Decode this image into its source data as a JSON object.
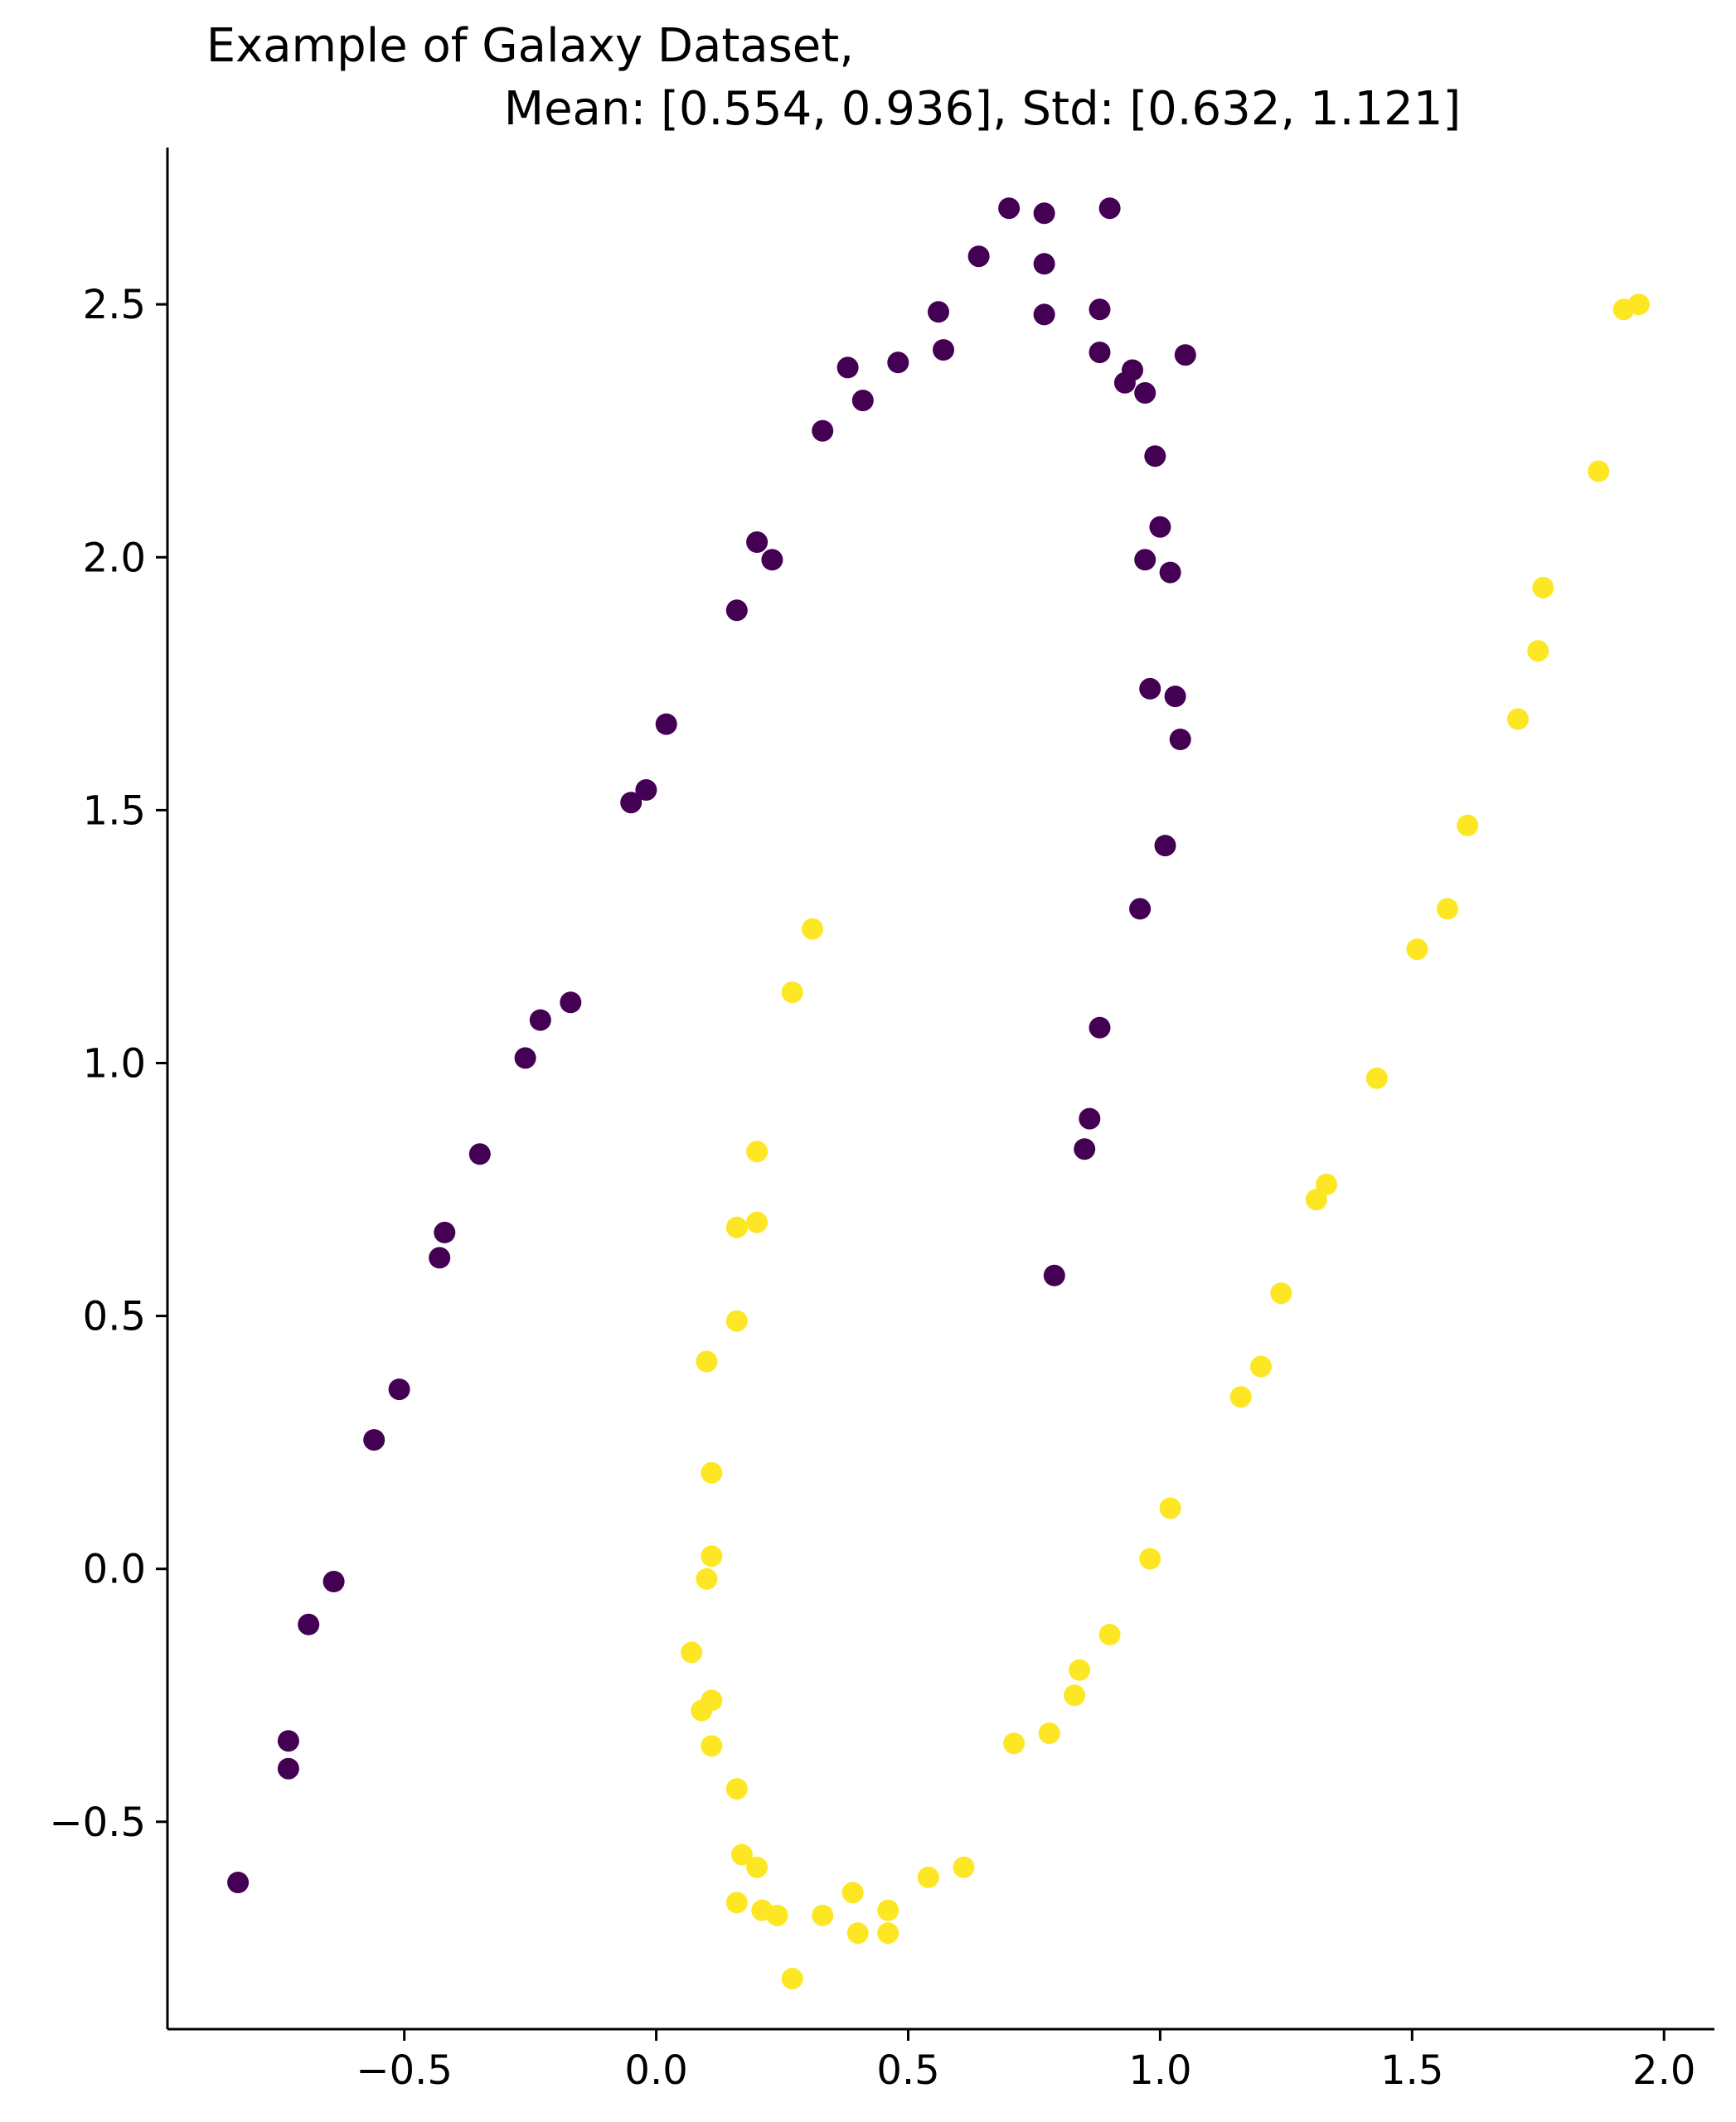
{
  "chart_data": {
    "type": "scatter",
    "title_line1": "Example of Galaxy Dataset,",
    "title_line2": "Mean: [0.554, 0.936], Std: [0.632, 1.121]",
    "xlabel": "",
    "ylabel": "",
    "xlim": [
      -0.97,
      2.1
    ],
    "ylim": [
      -0.91,
      2.81
    ],
    "xticks": [
      -0.5,
      0.0,
      0.5,
      1.0,
      1.5,
      2.0
    ],
    "xtick_labels": [
      "−0.5",
      "0.0",
      "0.5",
      "1.0",
      "1.5",
      "2.0"
    ],
    "yticks": [
      -0.5,
      0.0,
      0.5,
      1.0,
      1.5,
      2.0,
      2.5
    ],
    "ytick_labels": [
      "−0.5",
      "0.0",
      "0.5",
      "1.0",
      "1.5",
      "2.0",
      "2.5"
    ],
    "grid": false,
    "spines": [
      "left",
      "bottom"
    ],
    "series": [
      {
        "color": "#440154",
        "points": [
          [
            -0.83,
            -0.62
          ],
          [
            -0.73,
            -0.34
          ],
          [
            -0.73,
            -0.395
          ],
          [
            -0.69,
            -0.11
          ],
          [
            -0.64,
            -0.025
          ],
          [
            -0.56,
            0.255
          ],
          [
            -0.51,
            0.355
          ],
          [
            -0.43,
            0.615
          ],
          [
            -0.42,
            0.665
          ],
          [
            -0.35,
            0.82
          ],
          [
            -0.26,
            1.01
          ],
          [
            -0.23,
            1.085
          ],
          [
            -0.17,
            1.12
          ],
          [
            -0.05,
            1.515
          ],
          [
            -0.02,
            1.54
          ],
          [
            0.02,
            1.67
          ],
          [
            0.16,
            1.895
          ],
          [
            0.2,
            2.03
          ],
          [
            0.23,
            1.995
          ],
          [
            0.33,
            2.25
          ],
          [
            0.38,
            2.375
          ],
          [
            0.41,
            2.31
          ],
          [
            0.48,
            2.385
          ],
          [
            0.56,
            2.485
          ],
          [
            0.57,
            2.41
          ],
          [
            0.64,
            2.595
          ],
          [
            0.7,
            2.69
          ],
          [
            0.77,
            2.68
          ],
          [
            0.77,
            2.58
          ],
          [
            0.77,
            2.48
          ],
          [
            0.88,
            2.49
          ],
          [
            0.88,
            2.405
          ],
          [
            0.9,
            2.69
          ],
          [
            0.93,
            2.345
          ],
          [
            0.945,
            2.37
          ],
          [
            0.97,
            2.325
          ],
          [
            0.99,
            2.2
          ],
          [
            1.0,
            2.06
          ],
          [
            0.97,
            1.995
          ],
          [
            1.02,
            1.97
          ],
          [
            1.05,
            2.4
          ],
          [
            0.98,
            1.74
          ],
          [
            1.03,
            1.725
          ],
          [
            1.04,
            1.64
          ],
          [
            1.01,
            1.43
          ],
          [
            0.96,
            1.305
          ],
          [
            0.88,
            1.07
          ],
          [
            0.86,
            0.89
          ],
          [
            0.85,
            0.83
          ],
          [
            0.79,
            0.58
          ]
        ]
      },
      {
        "color": "#fde725",
        "points": [
          [
            0.31,
            1.265
          ],
          [
            0.27,
            1.14
          ],
          [
            0.2,
            0.825
          ],
          [
            0.2,
            0.685
          ],
          [
            0.16,
            0.675
          ],
          [
            0.16,
            0.49
          ],
          [
            0.1,
            0.41
          ],
          [
            0.11,
            0.19
          ],
          [
            0.11,
            0.025
          ],
          [
            0.1,
            -0.02
          ],
          [
            0.07,
            -0.165
          ],
          [
            0.09,
            -0.28
          ],
          [
            0.11,
            -0.26
          ],
          [
            0.11,
            -0.35
          ],
          [
            0.16,
            -0.435
          ],
          [
            0.17,
            -0.565
          ],
          [
            0.2,
            -0.59
          ],
          [
            0.16,
            -0.66
          ],
          [
            0.21,
            -0.675
          ],
          [
            0.24,
            -0.685
          ],
          [
            0.27,
            -0.81
          ],
          [
            0.33,
            -0.685
          ],
          [
            0.39,
            -0.64
          ],
          [
            0.4,
            -0.72
          ],
          [
            0.46,
            -0.675
          ],
          [
            0.46,
            -0.72
          ],
          [
            0.54,
            -0.61
          ],
          [
            0.61,
            -0.59
          ],
          [
            0.71,
            -0.345
          ],
          [
            0.78,
            -0.325
          ],
          [
            0.83,
            -0.25
          ],
          [
            0.84,
            -0.2
          ],
          [
            0.9,
            -0.13
          ],
          [
            0.98,
            0.02
          ],
          [
            1.02,
            0.12
          ],
          [
            1.16,
            0.34
          ],
          [
            1.2,
            0.4
          ],
          [
            1.24,
            0.545
          ],
          [
            1.31,
            0.73
          ],
          [
            1.33,
            0.76
          ],
          [
            1.43,
            0.97
          ],
          [
            1.51,
            1.225
          ],
          [
            1.57,
            1.305
          ],
          [
            1.61,
            1.47
          ],
          [
            1.71,
            1.68
          ],
          [
            1.75,
            1.815
          ],
          [
            1.76,
            1.94
          ],
          [
            1.87,
            2.17
          ],
          [
            1.92,
            2.49
          ],
          [
            1.95,
            2.5
          ]
        ]
      }
    ]
  }
}
